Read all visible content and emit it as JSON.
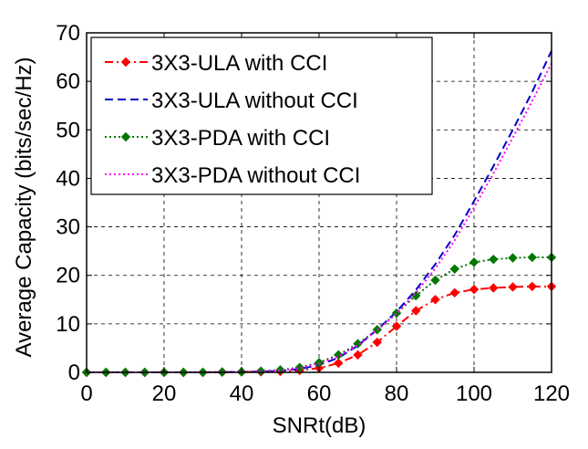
{
  "chart_data": {
    "type": "line",
    "title": "",
    "xlabel": "SNRt(dB)",
    "ylabel": "Average Capacity (bits/sec/Hz)",
    "xlim": [
      0,
      120
    ],
    "ylim": [
      0,
      70
    ],
    "xticks": [
      0,
      20,
      40,
      60,
      80,
      100,
      120
    ],
    "yticks": [
      0,
      10,
      20,
      30,
      40,
      50,
      60,
      70
    ],
    "grid": true,
    "legend_position": "top-left",
    "x": [
      0,
      5,
      10,
      15,
      20,
      25,
      30,
      35,
      40,
      45,
      50,
      55,
      60,
      65,
      70,
      75,
      80,
      85,
      90,
      95,
      100,
      105,
      110,
      115,
      120
    ],
    "series": [
      {
        "name": "3X3-ULA with CCI",
        "color": "#ff0000",
        "line_style": "dash-dot",
        "marker": "diamond",
        "values": [
          0,
          0,
          0,
          0,
          0,
          0,
          0,
          0.05,
          0.08,
          0.12,
          0.2,
          0.4,
          0.9,
          1.9,
          3.6,
          6.2,
          9.5,
          12.7,
          15.0,
          16.4,
          17.1,
          17.4,
          17.6,
          17.7,
          17.7
        ]
      },
      {
        "name": "3X3-ULA without CCI",
        "color": "#0000cc",
        "line_style": "dash",
        "marker": "none",
        "values": [
          0,
          0,
          0,
          0,
          0,
          0,
          0,
          0.05,
          0.08,
          0.15,
          0.3,
          0.7,
          1.5,
          3.0,
          5.5,
          8.8,
          12.5,
          17.0,
          22.3,
          28.3,
          35.3,
          42.5,
          50.0,
          57.8,
          66.3
        ]
      },
      {
        "name": "3X3-PDA with CCI",
        "color": "#007700",
        "line_style": "dot",
        "marker": "diamond",
        "values": [
          0,
          0,
          0,
          0,
          0,
          0,
          0,
          0.08,
          0.12,
          0.25,
          0.5,
          1.0,
          2.0,
          3.6,
          5.9,
          8.8,
          12.2,
          15.8,
          19.0,
          21.3,
          22.7,
          23.3,
          23.6,
          23.7,
          23.7
        ]
      },
      {
        "name": "3X3-PDA without CCI",
        "color": "#ff00ff",
        "line_style": "dot",
        "marker": "none",
        "values": [
          0,
          0,
          0,
          0,
          0,
          0,
          0,
          0.07,
          0.1,
          0.2,
          0.4,
          0.9,
          1.8,
          3.3,
          5.6,
          8.7,
          12.1,
          16.4,
          21.4,
          27.2,
          34.0,
          41.0,
          48.4,
          55.9,
          63.7
        ]
      }
    ]
  }
}
